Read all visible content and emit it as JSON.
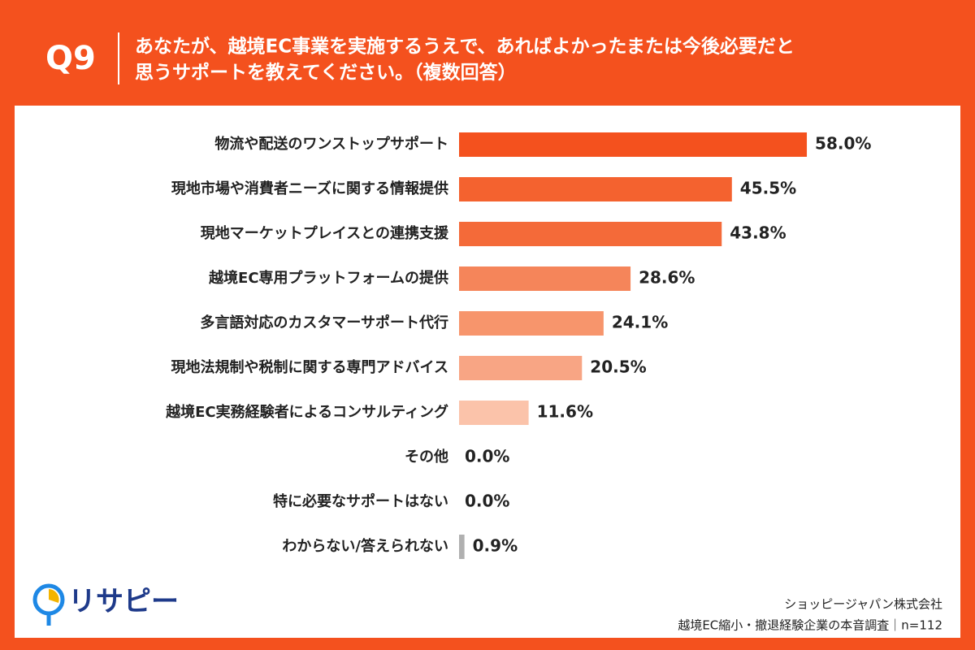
{
  "header": {
    "label": "Q9",
    "title_lines": [
      "あなたが、越境EC事業を実施するうえで、あればよかったまたは今後必要だと",
      "思うサポートを教えてください。（複数回答）"
    ]
  },
  "chart_data": {
    "type": "bar",
    "orientation": "horizontal",
    "categories": [
      "物流や配送のワンストップサポート",
      "現地市場や消費者ニーズに関する情報提供",
      "現地マーケットプレイスとの連携支援",
      "越境EC専用プラットフォームの提供",
      "多言語対応のカスタマーサポート代行",
      "現地法規制や税制に関する専門アドバイス",
      "越境EC実務経験者によるコンサルティング",
      "その他",
      "特に必要なサポートはない",
      "わからない/答えられない"
    ],
    "values": [
      58.0,
      45.5,
      43.8,
      28.6,
      24.1,
      20.5,
      11.6,
      0.0,
      0.0,
      0.9
    ],
    "value_labels": [
      "58.0%",
      "45.5%",
      "43.8%",
      "28.6%",
      "24.1%",
      "20.5%",
      "11.6%",
      "0.0%",
      "0.0%",
      "0.9%"
    ],
    "colors": [
      "#f4511e",
      "#f4622f",
      "#f46a39",
      "#f5855a",
      "#f7956c",
      "#f8a584",
      "#fbc3aa",
      "#f8a584",
      "#f8a584",
      "#b0b0b0"
    ]
  },
  "footer": {
    "source": "ショッピージャパン株式会社",
    "survey": "越境EC縮小・撤退経験企業の本音調査｜n=112"
  },
  "logo": "リサピー"
}
